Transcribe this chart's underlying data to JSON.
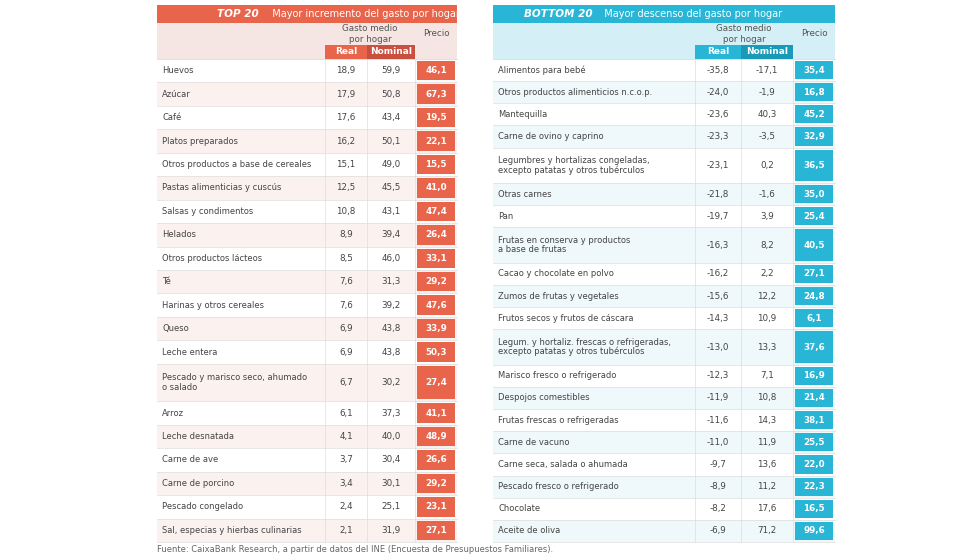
{
  "top20_title_bold": "TOP 20",
  "top20_title_rest": "  Mayor incremento del gasto por hogar",
  "bottom20_title_bold": "BOTTOM 20",
  "bottom20_title_rest": "  Mayor descenso del gasto por hogar",
  "col_header_gasto": "Gasto medio\npor hogar",
  "col_header_real": "Real",
  "col_header_nominal": "Nominal",
  "col_header_precio": "Precio",
  "footer": "Fuente: CaixaBank Research, a partir de datos del INE (Encuesta de Presupuestos Familiares).",
  "top20_color": "#E8644A",
  "top20_nominal_color": "#C94F3F",
  "bottom20_color": "#29B6D6",
  "bottom20_nominal_color": "#1A9AB8",
  "header_bg_top": "#F5E6E3",
  "header_bg_bottom": "#D5EFF6",
  "row_bg_white": "#FFFFFF",
  "row_bg_light_top": "#FBF2F0",
  "row_bg_light_bottom": "#EFF8FB",
  "divider_color": "#DDDDDD",
  "text_color": "#444444",
  "footer_color": "#666666",
  "top20": [
    {
      "label": "Huevos",
      "real": "18,9",
      "nominal": "59,9",
      "precio": "46,1",
      "multiline": false
    },
    {
      "label": "Azúcar",
      "real": "17,9",
      "nominal": "50,8",
      "precio": "67,3",
      "multiline": false
    },
    {
      "label": "Café",
      "real": "17,6",
      "nominal": "43,4",
      "precio": "19,5",
      "multiline": false
    },
    {
      "label": "Platos preparados",
      "real": "16,2",
      "nominal": "50,1",
      "precio": "22,1",
      "multiline": false
    },
    {
      "label": "Otros productos a base de cereales",
      "real": "15,1",
      "nominal": "49,0",
      "precio": "15,5",
      "multiline": false
    },
    {
      "label": "Pastas alimenticias y cuscús",
      "real": "12,5",
      "nominal": "45,5",
      "precio": "41,0",
      "multiline": false
    },
    {
      "label": "Salsas y condimentos",
      "real": "10,8",
      "nominal": "43,1",
      "precio": "47,4",
      "multiline": false
    },
    {
      "label": "Helados",
      "real": "8,9",
      "nominal": "39,4",
      "precio": "26,4",
      "multiline": false
    },
    {
      "label": "Otros productos lácteos",
      "real": "8,5",
      "nominal": "46,0",
      "precio": "33,1",
      "multiline": false
    },
    {
      "label": "Té",
      "real": "7,6",
      "nominal": "31,3",
      "precio": "29,2",
      "multiline": false
    },
    {
      "label": "Harinas y otros cereales",
      "real": "7,6",
      "nominal": "39,2",
      "precio": "47,6",
      "multiline": false
    },
    {
      "label": "Queso",
      "real": "6,9",
      "nominal": "43,8",
      "precio": "33,9",
      "multiline": false
    },
    {
      "label": "Leche entera",
      "real": "6,9",
      "nominal": "43,8",
      "precio": "50,3",
      "multiline": false
    },
    {
      "label": "Pescado y marisco seco, ahumado\no salado",
      "real": "6,7",
      "nominal": "30,2",
      "precio": "27,4",
      "multiline": true
    },
    {
      "label": "Arroz",
      "real": "6,1",
      "nominal": "37,3",
      "precio": "41,1",
      "multiline": false
    },
    {
      "label": "Leche desnatada",
      "real": "4,1",
      "nominal": "40,0",
      "precio": "48,9",
      "multiline": false
    },
    {
      "label": "Carne de ave",
      "real": "3,7",
      "nominal": "30,4",
      "precio": "26,6",
      "multiline": false
    },
    {
      "label": "Carne de porcino",
      "real": "3,4",
      "nominal": "30,1",
      "precio": "29,2",
      "multiline": false
    },
    {
      "label": "Pescado congelado",
      "real": "2,4",
      "nominal": "25,1",
      "precio": "23,1",
      "multiline": false
    },
    {
      "label": "Sal, especias y hierbas culinarias",
      "real": "2,1",
      "nominal": "31,9",
      "precio": "27,1",
      "multiline": false
    }
  ],
  "bottom20": [
    {
      "label": "Alimentos para bebé",
      "real": "-35,8",
      "nominal": "-17,1",
      "precio": "35,4",
      "multiline": false
    },
    {
      "label": "Otros productos alimenticios n.c.o.p.",
      "real": "-24,0",
      "nominal": "-1,9",
      "precio": "16,8",
      "multiline": false
    },
    {
      "label": "Mantequilla",
      "real": "-23,6",
      "nominal": "40,3",
      "precio": "45,2",
      "multiline": false
    },
    {
      "label": "Carne de ovino y caprino",
      "real": "-23,3",
      "nominal": "-3,5",
      "precio": "32,9",
      "multiline": false
    },
    {
      "label": "Legumbres y hortalizas congeladas,\nexcepto patatas y otros tubérculos",
      "real": "-23,1",
      "nominal": "0,2",
      "precio": "36,5",
      "multiline": true
    },
    {
      "label": "Otras carnes",
      "real": "-21,8",
      "nominal": "-1,6",
      "precio": "35,0",
      "multiline": false
    },
    {
      "label": "Pan",
      "real": "-19,7",
      "nominal": "3,9",
      "precio": "25,4",
      "multiline": false
    },
    {
      "label": "Frutas en conserva y productos\na base de frutas",
      "real": "-16,3",
      "nominal": "8,2",
      "precio": "40,5",
      "multiline": true
    },
    {
      "label": "Cacao y chocolate en polvo",
      "real": "-16,2",
      "nominal": "2,2",
      "precio": "27,1",
      "multiline": false
    },
    {
      "label": "Zumos de frutas y vegetales",
      "real": "-15,6",
      "nominal": "12,2",
      "precio": "24,8",
      "multiline": false
    },
    {
      "label": "Frutos secos y frutos de cáscara",
      "real": "-14,3",
      "nominal": "10,9",
      "precio": "6,1",
      "multiline": false
    },
    {
      "label": "Legum. y hortaliz. frescas o refrigeradas,\nexcepto patatas y otros tubérculos",
      "real": "-13,0",
      "nominal": "13,3",
      "precio": "37,6",
      "multiline": true
    },
    {
      "label": "Marisco fresco o refrigerado",
      "real": "-12,3",
      "nominal": "7,1",
      "precio": "16,9",
      "multiline": false
    },
    {
      "label": "Despojos comestibles",
      "real": "-11,9",
      "nominal": "10,8",
      "precio": "21,4",
      "multiline": false
    },
    {
      "label": "Frutas frescas o refrigeradas",
      "real": "-11,6",
      "nominal": "14,3",
      "precio": "38,1",
      "multiline": false
    },
    {
      "label": "Carne de vacuno",
      "real": "-11,0",
      "nominal": "11,9",
      "precio": "25,5",
      "multiline": false
    },
    {
      "label": "Carne seca, salada o ahumada",
      "real": "-9,7",
      "nominal": "13,6",
      "precio": "22,0",
      "multiline": false
    },
    {
      "label": "Pescado fresco o refrigerado",
      "real": "-8,9",
      "nominal": "11,2",
      "precio": "22,3",
      "multiline": false
    },
    {
      "label": "Chocolate",
      "real": "-8,2",
      "nominal": "17,6",
      "precio": "16,5",
      "multiline": false
    },
    {
      "label": "Aceite de oliva",
      "real": "-6,9",
      "nominal": "71,2",
      "precio": "99,6",
      "multiline": false
    }
  ]
}
